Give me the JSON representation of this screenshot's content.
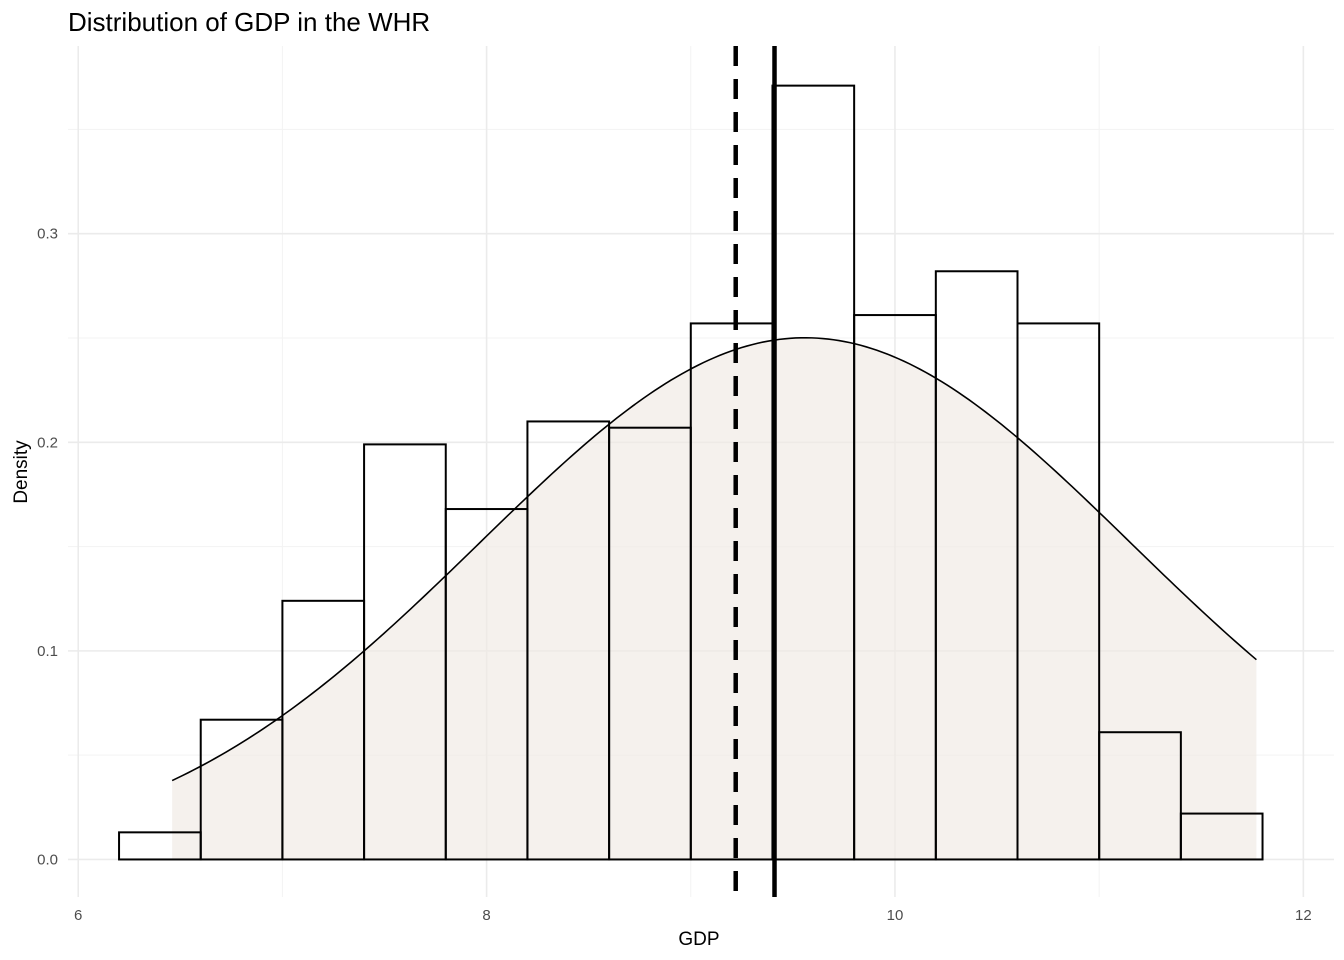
{
  "chart_data": {
    "type": "bar",
    "title": "Distribution of GDP in the WHR",
    "xlabel": "GDP",
    "ylabel": "Density",
    "xlim": [
      5.95,
      12.15
    ],
    "ylim": [
      -0.018,
      0.39
    ],
    "x_ticks": [
      6,
      8,
      10,
      12
    ],
    "x_tick_labels": [
      "6",
      "8",
      "10",
      "12"
    ],
    "y_ticks": [
      0.0,
      0.1,
      0.2,
      0.3
    ],
    "y_tick_labels": [
      "0.0",
      "0.1",
      "0.2",
      "0.3"
    ],
    "grid": true,
    "histogram": {
      "bins": [
        {
          "x0": 6.2,
          "x1": 6.6,
          "density": 0.013
        },
        {
          "x0": 6.6,
          "x1": 7.0,
          "density": 0.067
        },
        {
          "x0": 7.0,
          "x1": 7.4,
          "density": 0.124
        },
        {
          "x0": 7.4,
          "x1": 7.8,
          "density": 0.199
        },
        {
          "x0": 7.8,
          "x1": 8.2,
          "density": 0.168
        },
        {
          "x0": 8.2,
          "x1": 8.6,
          "density": 0.21
        },
        {
          "x0": 8.6,
          "x1": 9.0,
          "density": 0.207
        },
        {
          "x0": 9.0,
          "x1": 9.4,
          "density": 0.257
        },
        {
          "x0": 9.4,
          "x1": 9.8,
          "density": 0.371
        },
        {
          "x0": 9.8,
          "x1": 10.2,
          "density": 0.261
        },
        {
          "x0": 10.2,
          "x1": 10.6,
          "density": 0.282
        },
        {
          "x0": 10.6,
          "x1": 11.0,
          "density": 0.257
        },
        {
          "x0": 11.0,
          "x1": 11.4,
          "density": 0.061
        },
        {
          "x0": 11.4,
          "x1": 11.8,
          "density": 0.022
        }
      ]
    },
    "normal_density": {
      "mean": 9.56,
      "sd": 1.595,
      "x_range": [
        6.46,
        11.77
      ]
    },
    "vertical_lines": [
      {
        "x": 9.22,
        "style": "dashed"
      },
      {
        "x": 9.41,
        "style": "solid"
      }
    ],
    "colors": {
      "fill": "#efe9e4",
      "line": "#000000",
      "grid": "#ebebeb"
    }
  }
}
